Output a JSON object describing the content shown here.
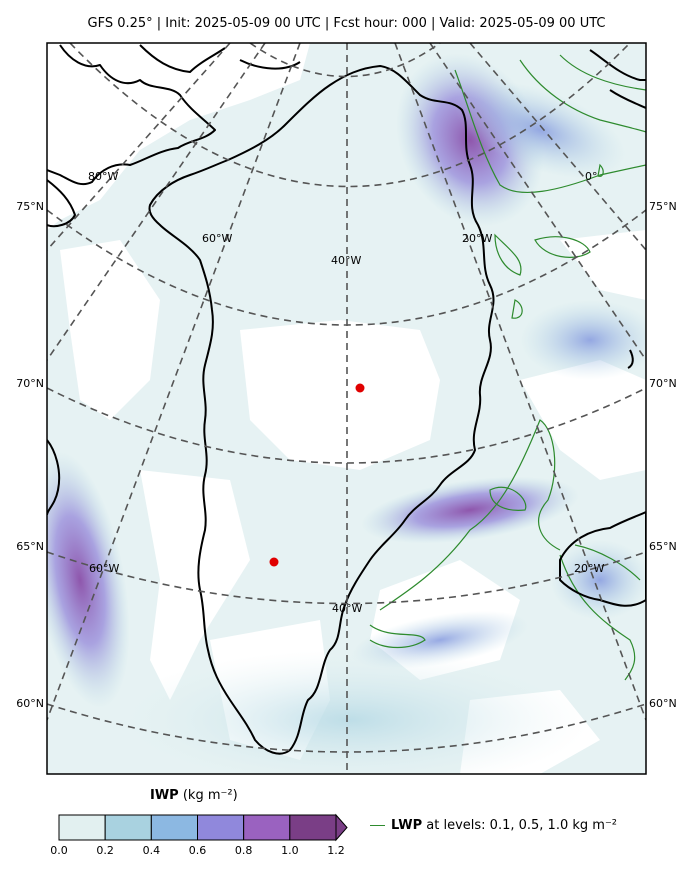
{
  "title": "GFS 0.25°  |  Init: 2025-05-09 00 UTC  |  Fcst hour: 000  |  Valid: 2025-05-09 00 UTC",
  "lat_labels": [
    "60°N",
    "65°N",
    "70°N",
    "75°N"
  ],
  "lon_labels": [
    "80°W",
    "60°W",
    "40°W",
    "20°W",
    "0°"
  ],
  "colorbar": {
    "title_bold": "IWP",
    "title_unit": " (kg m⁻²)",
    "ticks": [
      "0.0",
      "0.2",
      "0.4",
      "0.6",
      "0.8",
      "1.0",
      "1.2"
    ],
    "colors": [
      "#e2f0f0",
      "#a9d2e0",
      "#8cb8e2",
      "#9088dc",
      "#9a62c0",
      "#7a3e86"
    ],
    "extend": "max"
  },
  "legend": {
    "line_color": "#2e8b2e",
    "name_bold": "LWP",
    "text": " at levels: 0.1, 0.5, 1.0  kg m⁻²"
  },
  "markers": [
    {
      "lat": 69.8,
      "lon": -39.0,
      "color": "#e00000"
    },
    {
      "lat": 64.2,
      "lon": -45.0,
      "color": "#e00000"
    }
  ]
}
